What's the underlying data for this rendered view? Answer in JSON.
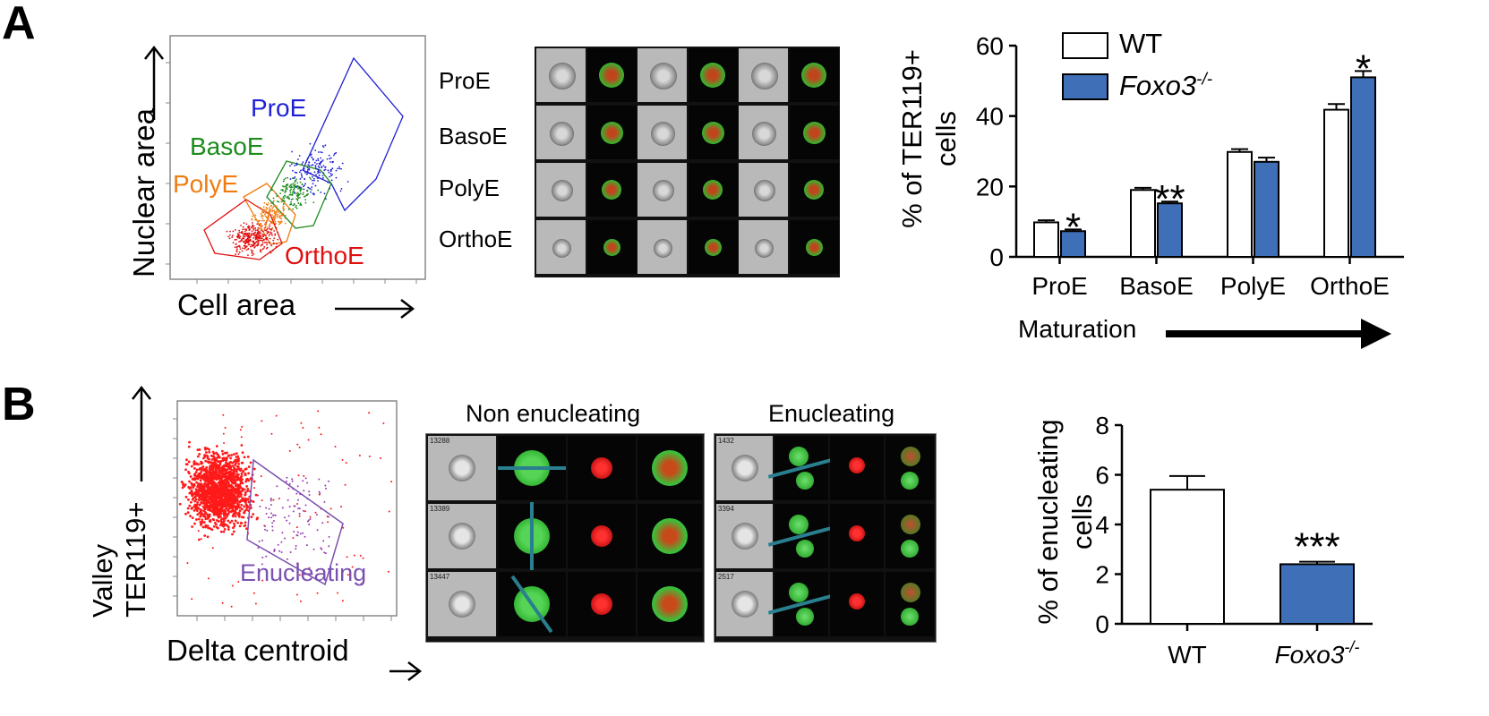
{
  "panel_a": {
    "letter": "A",
    "scatter": {
      "ylabel": "Nuclear area",
      "xlabel": "Cell area",
      "gates": [
        "ProE",
        "BasoE",
        "PolyE",
        "OrthoE"
      ],
      "gate_colors": [
        "#1f1fd6",
        "#1d8c1d",
        "#f07c10",
        "#e01010"
      ]
    },
    "imaging_rows": [
      "ProE",
      "BasoE",
      "PolyE",
      "OrthoE"
    ]
  },
  "panel_b": {
    "letter": "B",
    "scatter": {
      "ylabel_line1": "Valley",
      "ylabel_line2": "TER119+",
      "xlabel": "Delta centroid",
      "gate_label": "Enucleating",
      "gate_color": "#7a50b0"
    },
    "imaging": {
      "left_title": "Non enucleating",
      "right_title": "Enucleating",
      "left_ids": [
        "13288",
        "13389",
        "13447"
      ],
      "right_ids": [
        "1432",
        "3394",
        "2517"
      ]
    }
  },
  "chart_data": [
    {
      "type": "bar",
      "categories": [
        "ProE",
        "BasoE",
        "PolyE",
        "OrthoE"
      ],
      "series": [
        {
          "name": "WT",
          "values": [
            9.8,
            19.0,
            29.8,
            41.8
          ],
          "errors": [
            0.6,
            0.6,
            0.8,
            1.6
          ],
          "color": "#ffffff"
        },
        {
          "name": "Foxo3-/-",
          "values": [
            7.3,
            15.2,
            27.0,
            51.0
          ],
          "errors": [
            0.5,
            0.5,
            1.2,
            1.8
          ],
          "color": "#3f6fb7"
        }
      ],
      "significance": [
        "*",
        "**",
        "",
        "*"
      ],
      "ylabel_line1": "% of TER119+",
      "ylabel_line2": "cells",
      "xlabel": "Maturation",
      "yticks": [
        0,
        20,
        40,
        60
      ],
      "ylim": [
        0,
        60
      ],
      "legend": [
        "WT",
        "Foxo3"
      ],
      "legend_superscript": "-/-",
      "legend_position": "top-left"
    },
    {
      "type": "bar",
      "categories": [
        "WT",
        "Foxo3"
      ],
      "category_superscript": [
        "",
        "-/-"
      ],
      "values": [
        5.4,
        2.4
      ],
      "errors": [
        0.55,
        0.1
      ],
      "colors": [
        "#ffffff",
        "#3f6fb7"
      ],
      "significance": [
        "",
        "***"
      ],
      "ylabel_line1": "% of enucleating",
      "ylabel_line2": "cells",
      "yticks": [
        0,
        2,
        4,
        6,
        8
      ],
      "ylim": [
        0,
        8
      ]
    }
  ]
}
